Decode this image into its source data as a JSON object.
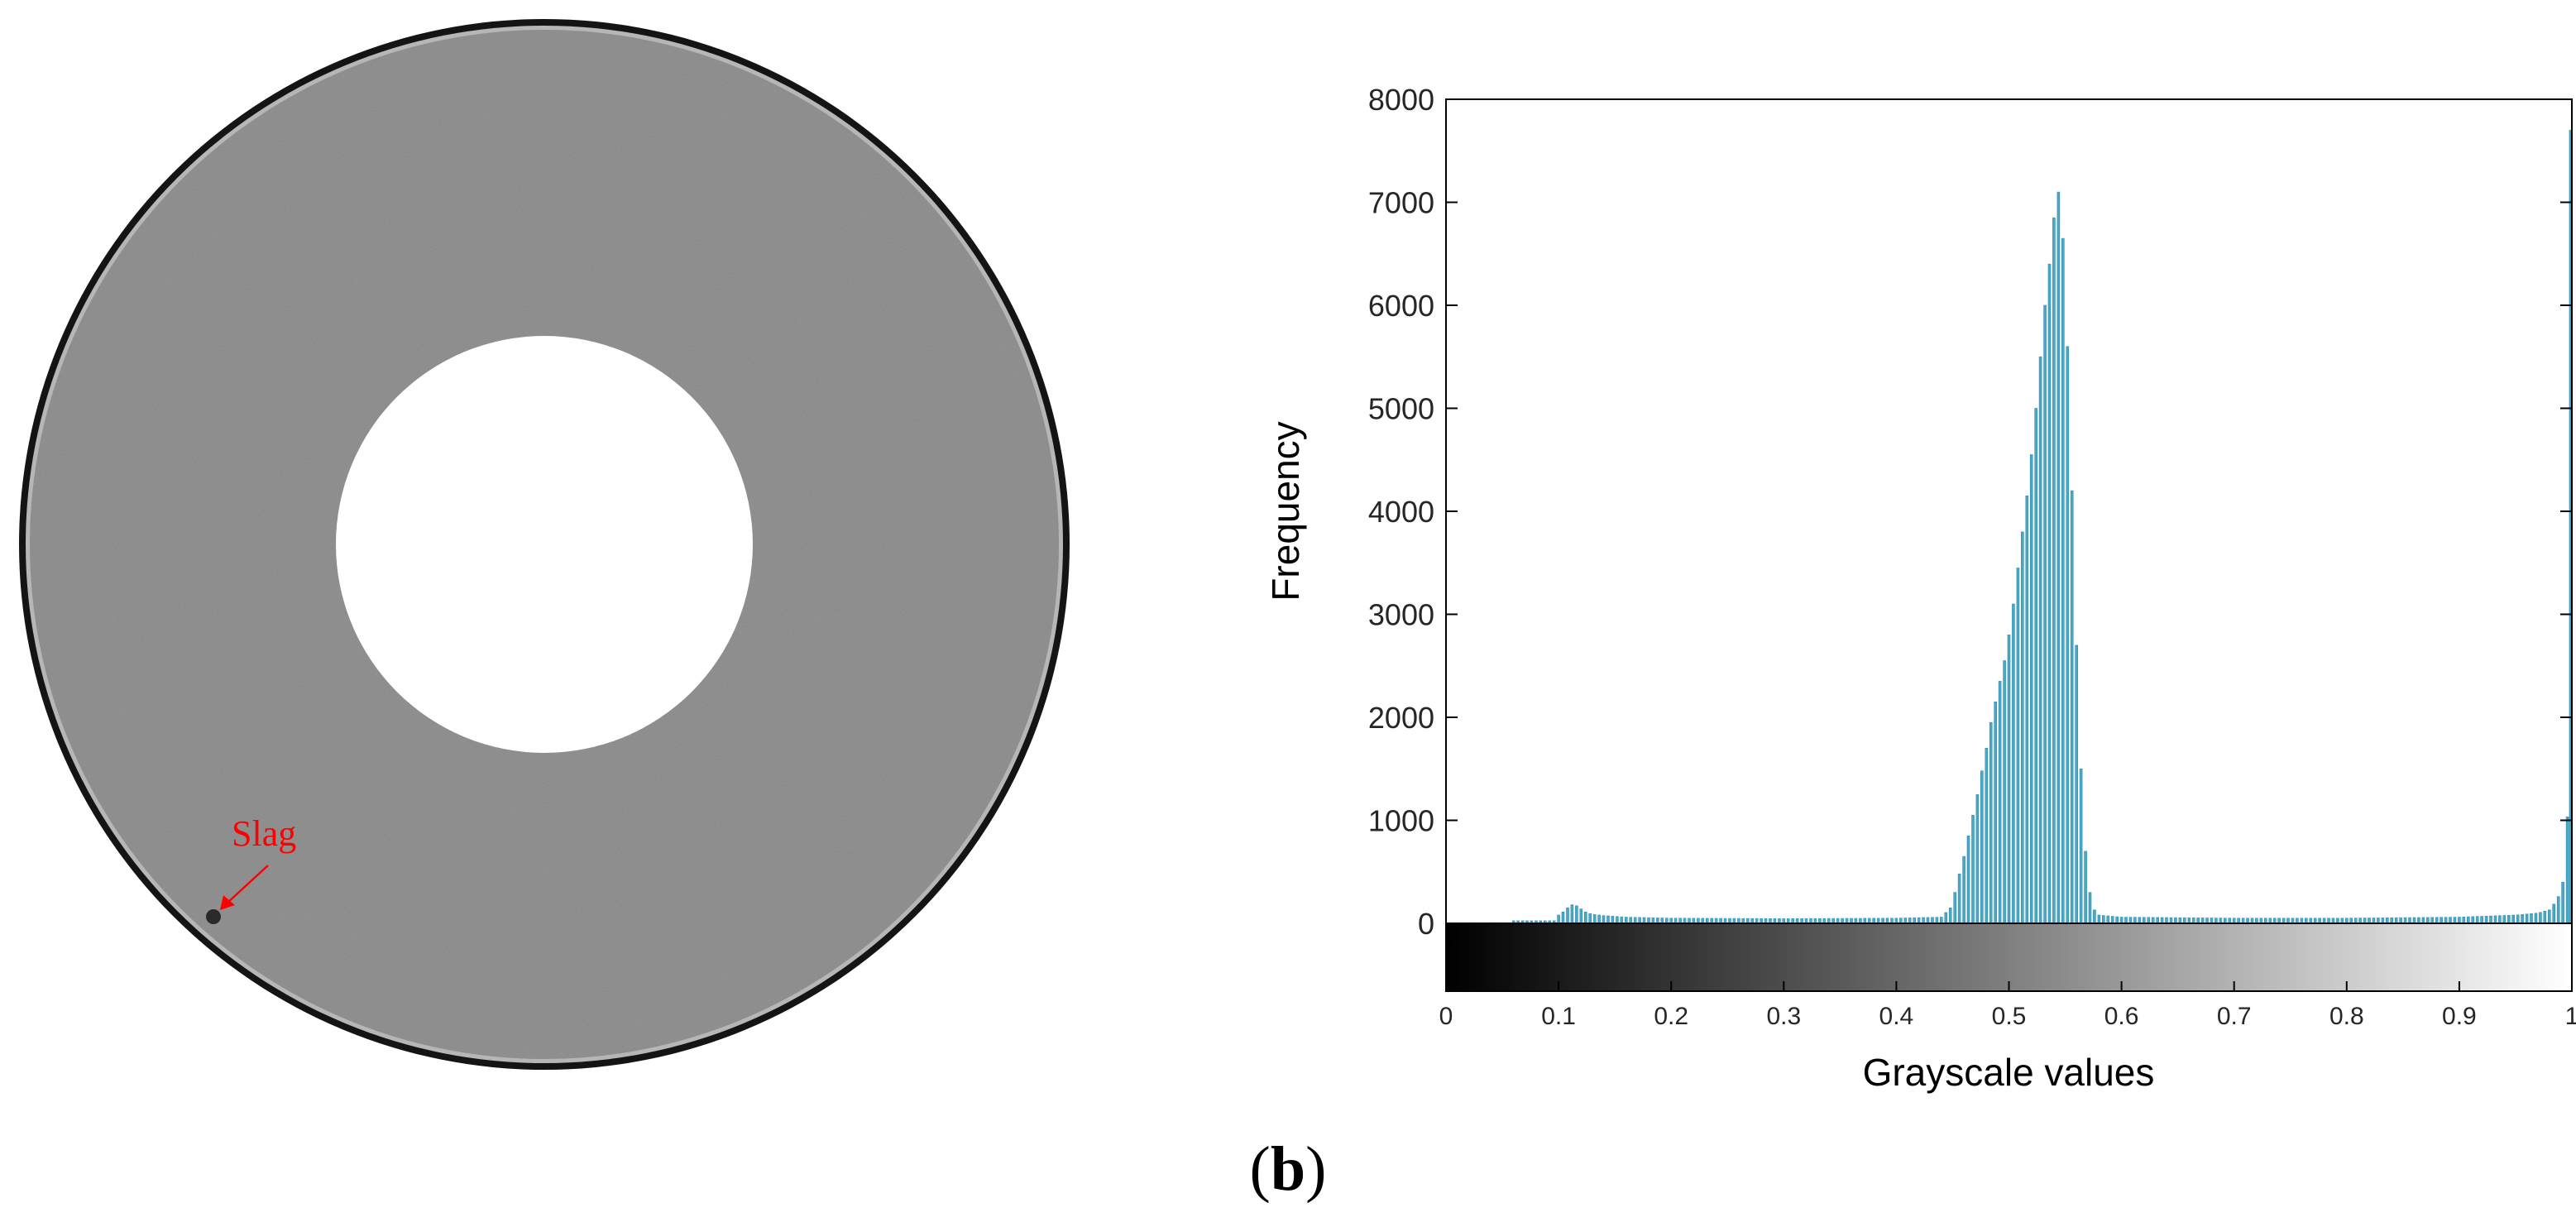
{
  "ct_image": {
    "annotation_text": "Slag",
    "annotation_color": "#ff0000"
  },
  "panel_label": {
    "open": "(",
    "letter": "b",
    "close": ")"
  },
  "colors": {
    "bar": "#4aa8c6",
    "bar_edge": "#2e8fb0",
    "axis": "#000000",
    "tick_text": "#262626"
  },
  "chart_data": {
    "type": "bar",
    "xlabel": "Grayscale values",
    "ylabel": "Frequency",
    "title": "",
    "xlim": [
      0,
      1
    ],
    "ylim": [
      0,
      8000
    ],
    "x_ticks": [
      0,
      0.1,
      0.2,
      0.3,
      0.4,
      0.5,
      0.6,
      0.7,
      0.8,
      0.9,
      1
    ],
    "x_tick_labels": [
      "0",
      "0.1",
      "0.2",
      "0.3",
      "0.4",
      "0.5",
      "0.6",
      "0.7",
      "0.8",
      "0.9",
      "1"
    ],
    "y_ticks": [
      0,
      1000,
      2000,
      3000,
      4000,
      5000,
      6000,
      7000,
      8000
    ],
    "y_tick_labels": [
      "0",
      "1000",
      "2000",
      "3000",
      "4000",
      "5000",
      "6000",
      "7000",
      "8000"
    ],
    "colorbar": {
      "from": "#000000",
      "to": "#ffffff",
      "range": [
        0,
        1
      ]
    },
    "grid": false,
    "bin_width": 0.004,
    "series": [
      {
        "bins": [
          {
            "x": 0.1,
            "y": 80
          },
          {
            "x": 0.104,
            "y": 110
          },
          {
            "x": 0.108,
            "y": 150
          },
          {
            "x": 0.112,
            "y": 180
          },
          {
            "x": 0.116,
            "y": 170
          },
          {
            "x": 0.12,
            "y": 140
          },
          {
            "x": 0.124,
            "y": 110
          },
          {
            "x": 0.128,
            "y": 95
          },
          {
            "x": 0.132,
            "y": 85
          },
          {
            "x": 0.136,
            "y": 80
          },
          {
            "x": 0.14,
            "y": 75
          },
          {
            "x": 0.16,
            "y": 60
          },
          {
            "x": 0.2,
            "y": 50
          },
          {
            "x": 0.3,
            "y": 45
          },
          {
            "x": 0.4,
            "y": 50
          },
          {
            "x": 0.44,
            "y": 60
          },
          {
            "x": 0.448,
            "y": 150
          },
          {
            "x": 0.452,
            "y": 300
          },
          {
            "x": 0.456,
            "y": 480
          },
          {
            "x": 0.46,
            "y": 650
          },
          {
            "x": 0.464,
            "y": 850
          },
          {
            "x": 0.468,
            "y": 1050
          },
          {
            "x": 0.472,
            "y": 1250
          },
          {
            "x": 0.476,
            "y": 1480
          },
          {
            "x": 0.48,
            "y": 1700
          },
          {
            "x": 0.484,
            "y": 1950
          },
          {
            "x": 0.488,
            "y": 2150
          },
          {
            "x": 0.492,
            "y": 2350
          },
          {
            "x": 0.496,
            "y": 2550
          },
          {
            "x": 0.5,
            "y": 2800
          },
          {
            "x": 0.504,
            "y": 3100
          },
          {
            "x": 0.508,
            "y": 3450
          },
          {
            "x": 0.512,
            "y": 3800
          },
          {
            "x": 0.516,
            "y": 4150
          },
          {
            "x": 0.52,
            "y": 4550
          },
          {
            "x": 0.524,
            "y": 5000
          },
          {
            "x": 0.528,
            "y": 5500
          },
          {
            "x": 0.532,
            "y": 6000
          },
          {
            "x": 0.536,
            "y": 6400
          },
          {
            "x": 0.54,
            "y": 6850
          },
          {
            "x": 0.544,
            "y": 7100
          },
          {
            "x": 0.548,
            "y": 6650
          },
          {
            "x": 0.552,
            "y": 5600
          },
          {
            "x": 0.556,
            "y": 4200
          },
          {
            "x": 0.56,
            "y": 2700
          },
          {
            "x": 0.564,
            "y": 1500
          },
          {
            "x": 0.568,
            "y": 700
          },
          {
            "x": 0.572,
            "y": 300
          },
          {
            "x": 0.576,
            "y": 130
          },
          {
            "x": 0.58,
            "y": 80
          },
          {
            "x": 0.6,
            "y": 60
          },
          {
            "x": 0.7,
            "y": 50
          },
          {
            "x": 0.8,
            "y": 50
          },
          {
            "x": 0.9,
            "y": 60
          },
          {
            "x": 0.95,
            "y": 80
          },
          {
            "x": 0.97,
            "y": 100
          },
          {
            "x": 0.98,
            "y": 130
          },
          {
            "x": 0.985,
            "y": 200
          },
          {
            "x": 0.99,
            "y": 300
          },
          {
            "x": 0.994,
            "y": 500
          },
          {
            "x": 0.997,
            "y": 1300
          },
          {
            "x": 1.0,
            "y": 7700
          }
        ]
      }
    ]
  }
}
